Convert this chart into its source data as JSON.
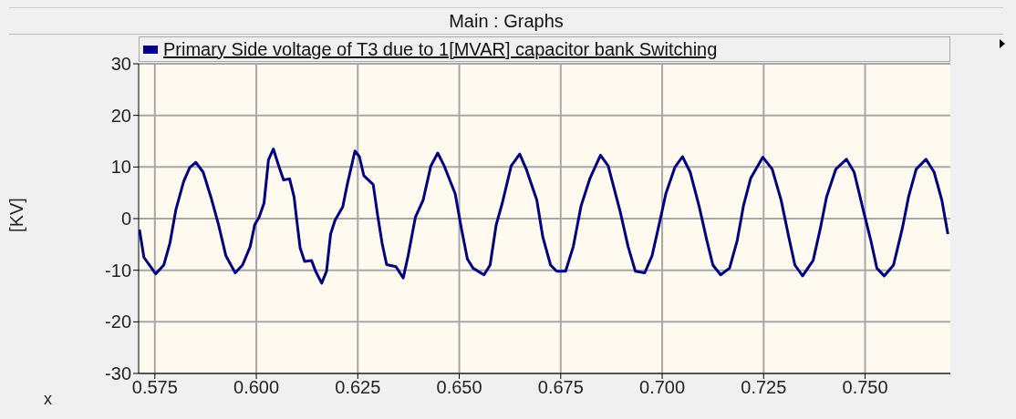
{
  "chart_data": {
    "type": "line",
    "title": "Main : Graphs",
    "xlabel": "x",
    "ylabel": "[KV]",
    "x": [
      0.5712,
      0.5723,
      0.5752,
      0.5772,
      0.5787,
      0.5802,
      0.5821,
      0.5836,
      0.5851,
      0.5869,
      0.5888,
      0.5907,
      0.5925,
      0.5948,
      0.5966,
      0.5985,
      0.5996,
      0.6007,
      0.6019,
      0.603,
      0.6042,
      0.6054,
      0.6067,
      0.6082,
      0.6093,
      0.6101,
      0.6108,
      0.6119,
      0.6136,
      0.6146,
      0.6161,
      0.6173,
      0.6183,
      0.6194,
      0.6213,
      0.6224,
      0.6243,
      0.6254,
      0.6265,
      0.6288,
      0.6299,
      0.631,
      0.6321,
      0.6344,
      0.6362,
      0.6374,
      0.6392,
      0.6411,
      0.643,
      0.6447,
      0.6463,
      0.649,
      0.6505,
      0.652,
      0.6534,
      0.6561,
      0.6576,
      0.6591,
      0.6606,
      0.6628,
      0.6649,
      0.6665,
      0.6691,
      0.6706,
      0.6725,
      0.674,
      0.6762,
      0.6781,
      0.68,
      0.6822,
      0.6848,
      0.6867,
      0.6897,
      0.6916,
      0.6934,
      0.6957,
      0.6975,
      0.6994,
      0.7009,
      0.7031,
      0.705,
      0.7069,
      0.7091,
      0.711,
      0.7125,
      0.7144,
      0.7166,
      0.7185,
      0.72,
      0.7218,
      0.7248,
      0.7271,
      0.7293,
      0.7312,
      0.7327,
      0.7346,
      0.7372,
      0.739,
      0.7405,
      0.7428,
      0.7454,
      0.7473,
      0.7495,
      0.7514,
      0.7529,
      0.7547,
      0.757,
      0.7592,
      0.7607,
      0.7626,
      0.765,
      0.767,
      0.7689,
      0.7704
    ],
    "series": [
      {
        "name": "Primary Side voltage of T3 due to 1[MVAR] capacitor bank Switching",
        "color": "#000080",
        "values": [
          -2.1,
          -7.5,
          -10.7,
          -9.0,
          -4.8,
          1.8,
          7.2,
          9.9,
          10.9,
          9.0,
          4.2,
          -1.2,
          -7.2,
          -10.5,
          -9.0,
          -5.4,
          -1.2,
          0.3,
          3.0,
          11.4,
          13.5,
          10.5,
          7.5,
          7.7,
          4.2,
          -1.2,
          -5.7,
          -8.3,
          -8.1,
          -10.2,
          -12.5,
          -10.2,
          -3.0,
          -0.3,
          2.3,
          6.6,
          13.1,
          12.0,
          8.3,
          6.6,
          0.6,
          -4.8,
          -8.9,
          -9.3,
          -11.5,
          -7.2,
          0.3,
          3.6,
          10.2,
          12.7,
          10.2,
          4.8,
          -1.8,
          -7.8,
          -9.6,
          -10.9,
          -9.0,
          -1.2,
          3.0,
          10.2,
          12.5,
          9.6,
          3.6,
          -3.6,
          -9.0,
          -10.2,
          -10.2,
          -5.4,
          2.4,
          7.8,
          12.3,
          10.2,
          1.2,
          -5.4,
          -10.2,
          -10.5,
          -7.2,
          -0.6,
          4.8,
          9.9,
          12.0,
          9.0,
          2.4,
          -4.2,
          -9.0,
          -10.9,
          -9.6,
          -4.2,
          2.4,
          7.8,
          11.9,
          9.6,
          3.6,
          -3.6,
          -9.0,
          -11.1,
          -8.1,
          -1.8,
          4.2,
          9.6,
          11.5,
          9.0,
          1.8,
          -4.2,
          -9.6,
          -11.1,
          -9.0,
          -1.8,
          4.2,
          9.6,
          11.5,
          9.0,
          3.6,
          -3.0
        ]
      }
    ],
    "xlim": [
      0.571,
      0.771
    ],
    "xticks": [
      {
        "value": 0.575,
        "label": "0.575"
      },
      {
        "value": 0.6,
        "label": "0.600"
      },
      {
        "value": 0.625,
        "label": "0.625"
      },
      {
        "value": 0.65,
        "label": "0.650"
      },
      {
        "value": 0.675,
        "label": "0.675"
      },
      {
        "value": 0.7,
        "label": "0.700"
      },
      {
        "value": 0.725,
        "label": "0.725"
      },
      {
        "value": 0.75,
        "label": "0.750"
      }
    ],
    "ylim": [
      -30,
      30
    ],
    "yticks": [
      -30,
      -20,
      -10,
      0,
      10,
      20,
      30
    ],
    "grid": true,
    "legend": "top",
    "marker": "none",
    "line_style": "solid"
  }
}
